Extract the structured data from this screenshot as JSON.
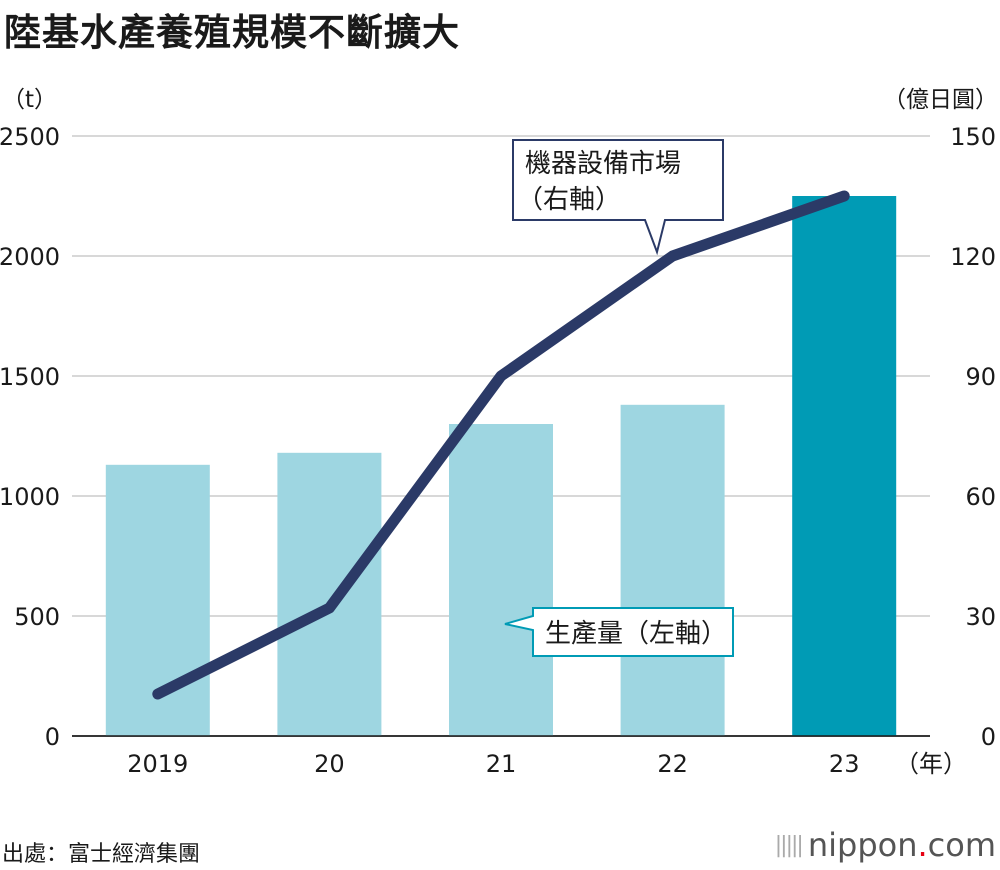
{
  "title": "陸基水產養殖規模不斷擴大",
  "left_axis_unit": "（t）",
  "right_axis_unit": "（億日圓）",
  "x_axis_unit": "（年）",
  "source": "出處：富士經濟集團",
  "brand": {
    "name": "nippon",
    "dot": ".",
    "suffix": "com",
    "mark": "|||||"
  },
  "callouts": {
    "line_label_1": "機器設備市場",
    "line_label_2": "（右軸）",
    "bar_label": "生產量（左軸）"
  },
  "colors": {
    "bar_light": "#9ed6e1",
    "bar_highlight": "#009bb5",
    "line": "#2b3a67",
    "grid": "#cccccc"
  },
  "chart_data": {
    "type": "bar",
    "categories": [
      "2019",
      "20",
      "21",
      "22",
      "23"
    ],
    "series": [
      {
        "name": "生產量（左軸）",
        "axis": "left",
        "type": "bar",
        "values": [
          1130,
          1180,
          1300,
          1380,
          2250
        ],
        "highlight_index": 4
      },
      {
        "name": "機器設備市場（右軸）",
        "axis": "right",
        "type": "line",
        "values": [
          10.5,
          32,
          90,
          120,
          135
        ]
      }
    ],
    "left_ylim": [
      0,
      2500
    ],
    "left_yticks": [
      "0",
      "500",
      "1000",
      "1500",
      "2000",
      "2500"
    ],
    "right_ylim": [
      0,
      150
    ],
    "right_yticks": [
      "0",
      "30",
      "60",
      "90",
      "120",
      "150"
    ],
    "grid": true
  }
}
